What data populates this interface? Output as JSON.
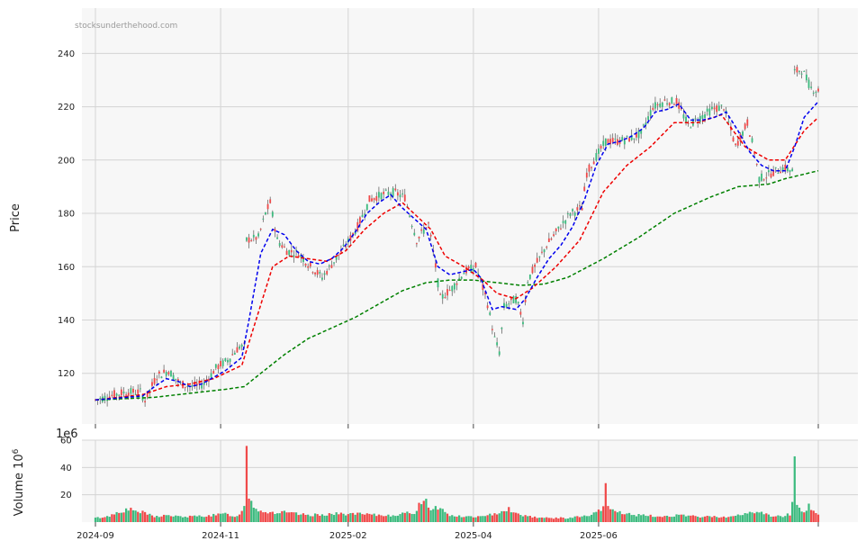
{
  "chart_data": {
    "type": "candlestick",
    "watermark": "stocksunderthehood.com",
    "price_panel": {
      "ylabel": "Price",
      "ylim": [
        101,
        257
      ],
      "yticks": [
        "120",
        "140",
        "160",
        "180",
        "200",
        "220",
        "240"
      ],
      "grid": true
    },
    "volume_panel": {
      "ylabel": "Volume  10",
      "ylabel_sup": "6",
      "offset_label": "1e6",
      "ylim": [
        0,
        60
      ],
      "yticks": [
        "20",
        "40",
        "60"
      ],
      "grid": true
    },
    "x_tick_labels": [
      "2024-09",
      "2024-11",
      "2025-02",
      "2025-04",
      "2025-06"
    ],
    "colors": {
      "up": "#3dbb7f",
      "down": "#f04a4a",
      "ma_blue": "#0000ee",
      "ma_red": "#ee0000",
      "ma_green": "#008000",
      "panel_bg": "#f7f7f7",
      "grid": "#d4d4d4"
    },
    "price_anchors": [
      [
        0,
        110
      ],
      [
        8,
        112
      ],
      [
        13,
        113
      ],
      [
        19,
        113
      ],
      [
        21,
        110
      ],
      [
        26,
        119
      ],
      [
        31,
        121
      ],
      [
        36,
        116
      ],
      [
        41,
        115
      ],
      [
        46,
        116
      ],
      [
        51,
        122
      ],
      [
        56,
        125
      ],
      [
        61,
        130
      ],
      [
        63,
        130
      ],
      [
        64,
        170
      ],
      [
        69,
        171
      ],
      [
        72,
        180
      ],
      [
        74,
        184
      ],
      [
        77,
        170
      ],
      [
        81,
        166
      ],
      [
        86,
        165
      ],
      [
        91,
        160
      ],
      [
        96,
        156
      ],
      [
        101,
        162
      ],
      [
        106,
        168
      ],
      [
        111,
        175
      ],
      [
        116,
        185
      ],
      [
        121,
        187
      ],
      [
        126,
        188
      ],
      [
        131,
        186
      ],
      [
        136,
        170
      ],
      [
        141,
        176
      ],
      [
        144,
        160
      ],
      [
        146,
        148
      ],
      [
        151,
        152
      ],
      [
        156,
        158
      ],
      [
        161,
        160
      ],
      [
        163,
        155
      ],
      [
        166,
        146
      ],
      [
        169,
        133
      ],
      [
        171,
        128
      ],
      [
        173,
        145
      ],
      [
        178,
        148
      ],
      [
        181,
        140
      ],
      [
        183,
        155
      ],
      [
        186,
        160
      ],
      [
        191,
        168
      ],
      [
        196,
        174
      ],
      [
        201,
        180
      ],
      [
        206,
        182
      ],
      [
        208,
        195
      ],
      [
        211,
        200
      ],
      [
        216,
        207
      ],
      [
        221,
        207
      ],
      [
        226,
        208
      ],
      [
        231,
        210
      ],
      [
        236,
        220
      ],
      [
        241,
        222
      ],
      [
        246,
        222
      ],
      [
        251,
        213
      ],
      [
        256,
        216
      ],
      [
        261,
        219
      ],
      [
        266,
        220
      ],
      [
        271,
        205
      ],
      [
        276,
        214
      ],
      [
        279,
        203
      ],
      [
        281,
        193
      ],
      [
        286,
        195
      ],
      [
        291,
        197
      ],
      [
        295,
        196
      ],
      [
        296,
        233
      ],
      [
        299,
        234
      ],
      [
        303,
        227
      ],
      [
        306,
        226
      ]
    ],
    "ma_blue": [
      [
        0,
        110
      ],
      [
        20,
        111.5
      ],
      [
        25,
        115
      ],
      [
        30,
        118
      ],
      [
        35,
        117
      ],
      [
        40,
        115
      ],
      [
        45,
        116
      ],
      [
        55,
        121
      ],
      [
        62,
        126
      ],
      [
        65,
        140
      ],
      [
        70,
        165
      ],
      [
        75,
        174
      ],
      [
        80,
        172
      ],
      [
        85,
        166
      ],
      [
        90,
        162
      ],
      [
        95,
        161
      ],
      [
        100,
        163
      ],
      [
        105,
        167
      ],
      [
        110,
        173
      ],
      [
        115,
        180
      ],
      [
        120,
        184
      ],
      [
        125,
        187
      ],
      [
        130,
        182
      ],
      [
        135,
        178
      ],
      [
        140,
        174
      ],
      [
        145,
        160
      ],
      [
        150,
        157
      ],
      [
        155,
        158
      ],
      [
        160,
        159
      ],
      [
        163,
        156
      ],
      [
        168,
        144
      ],
      [
        172,
        145
      ],
      [
        178,
        144
      ],
      [
        182,
        148
      ],
      [
        187,
        156
      ],
      [
        192,
        163
      ],
      [
        197,
        168
      ],
      [
        202,
        175
      ],
      [
        207,
        185
      ],
      [
        212,
        198
      ],
      [
        217,
        206
      ],
      [
        222,
        207
      ],
      [
        227,
        209
      ],
      [
        232,
        212
      ],
      [
        237,
        218
      ],
      [
        242,
        219
      ],
      [
        247,
        221
      ],
      [
        252,
        215
      ],
      [
        257,
        215
      ],
      [
        262,
        216
      ],
      [
        267,
        218
      ],
      [
        272,
        211
      ],
      [
        277,
        203
      ],
      [
        282,
        198
      ],
      [
        287,
        196
      ],
      [
        292,
        196
      ],
      [
        296,
        205
      ],
      [
        300,
        216
      ],
      [
        306,
        222
      ]
    ],
    "ma_red": [
      [
        0,
        110
      ],
      [
        20,
        112
      ],
      [
        30,
        115
      ],
      [
        40,
        116
      ],
      [
        50,
        118
      ],
      [
        62,
        123
      ],
      [
        68,
        140
      ],
      [
        75,
        160
      ],
      [
        82,
        164
      ],
      [
        90,
        163
      ],
      [
        98,
        162
      ],
      [
        106,
        166
      ],
      [
        114,
        174
      ],
      [
        122,
        180
      ],
      [
        130,
        184
      ],
      [
        136,
        179
      ],
      [
        142,
        174
      ],
      [
        148,
        164
      ],
      [
        156,
        160
      ],
      [
        164,
        155
      ],
      [
        170,
        150
      ],
      [
        178,
        148
      ],
      [
        185,
        152
      ],
      [
        195,
        160
      ],
      [
        205,
        170
      ],
      [
        215,
        188
      ],
      [
        225,
        198
      ],
      [
        235,
        205
      ],
      [
        245,
        214
      ],
      [
        255,
        214
      ],
      [
        265,
        217
      ],
      [
        275,
        205
      ],
      [
        285,
        200
      ],
      [
        292,
        200
      ],
      [
        300,
        211
      ],
      [
        306,
        216
      ]
    ],
    "ma_green": [
      [
        0,
        110
      ],
      [
        25,
        111
      ],
      [
        40,
        112.5
      ],
      [
        55,
        114
      ],
      [
        63,
        115
      ],
      [
        70,
        120
      ],
      [
        80,
        127
      ],
      [
        90,
        133
      ],
      [
        100,
        137
      ],
      [
        110,
        141
      ],
      [
        120,
        146
      ],
      [
        130,
        151
      ],
      [
        140,
        154
      ],
      [
        150,
        155
      ],
      [
        160,
        155
      ],
      [
        170,
        154
      ],
      [
        180,
        153
      ],
      [
        190,
        153.5
      ],
      [
        200,
        156
      ],
      [
        215,
        163
      ],
      [
        230,
        171
      ],
      [
        245,
        180
      ],
      [
        260,
        186
      ],
      [
        272,
        190
      ],
      [
        285,
        191
      ],
      [
        292,
        193
      ],
      [
        306,
        196
      ]
    ],
    "volume_anchors": [
      [
        0,
        3
      ],
      [
        5,
        4
      ],
      [
        8,
        6
      ],
      [
        10,
        8
      ],
      [
        15,
        9
      ],
      [
        20,
        7
      ],
      [
        25,
        4
      ],
      [
        30,
        5
      ],
      [
        35,
        4
      ],
      [
        40,
        4
      ],
      [
        50,
        5
      ],
      [
        55,
        6
      ],
      [
        60,
        4
      ],
      [
        62,
        8
      ],
      [
        63,
        14
      ],
      [
        64,
        55
      ],
      [
        65,
        20
      ],
      [
        67,
        12
      ],
      [
        70,
        8
      ],
      [
        75,
        7
      ],
      [
        80,
        7
      ],
      [
        85,
        6
      ],
      [
        90,
        5
      ],
      [
        100,
        6
      ],
      [
        110,
        6
      ],
      [
        120,
        5
      ],
      [
        125,
        5
      ],
      [
        130,
        6
      ],
      [
        135,
        7
      ],
      [
        140,
        20
      ],
      [
        141,
        10
      ],
      [
        145,
        11
      ],
      [
        150,
        5
      ],
      [
        155,
        4
      ],
      [
        160,
        4
      ],
      [
        165,
        4
      ],
      [
        170,
        7
      ],
      [
        175,
        10
      ],
      [
        178,
        6
      ],
      [
        185,
        4
      ],
      [
        190,
        3
      ],
      [
        200,
        3
      ],
      [
        210,
        5
      ],
      [
        215,
        10
      ],
      [
        216,
        26
      ],
      [
        217,
        11
      ],
      [
        220,
        8
      ],
      [
        225,
        6
      ],
      [
        230,
        5
      ],
      [
        240,
        4
      ],
      [
        245,
        5
      ],
      [
        255,
        4
      ],
      [
        265,
        4
      ],
      [
        270,
        4
      ],
      [
        275,
        6
      ],
      [
        280,
        8
      ],
      [
        285,
        5
      ],
      [
        290,
        4
      ],
      [
        294,
        6
      ],
      [
        295,
        16
      ],
      [
        296,
        42
      ],
      [
        297,
        12
      ],
      [
        300,
        8
      ],
      [
        302,
        12
      ],
      [
        306,
        5
      ]
    ],
    "candle_count": 307
  }
}
